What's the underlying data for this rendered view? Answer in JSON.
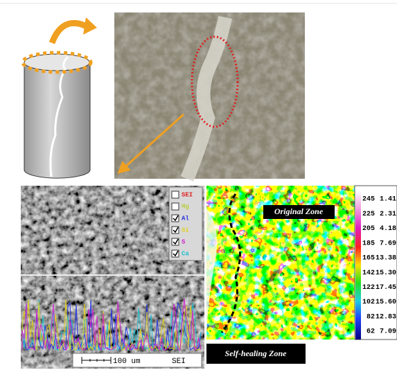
{
  "figure": {
    "legend": {
      "items": [
        {
          "label": "SEI",
          "checked": false,
          "color": "#e02020"
        },
        {
          "label": "Mg",
          "checked": false,
          "color": "#b8d040"
        },
        {
          "label": "Al",
          "checked": true,
          "color": "#2030e0"
        },
        {
          "label": "Si",
          "checked": true,
          "color": "#e0d020"
        },
        {
          "label": "S",
          "checked": true,
          "color": "#d020d0"
        },
        {
          "label": "Ca",
          "checked": true,
          "color": "#20c0d0"
        }
      ]
    },
    "scale_bar": {
      "label": "100 um",
      "detector": "SEI"
    },
    "zones": {
      "original": "Original Zone",
      "self_healing": "Self-healing Zone"
    },
    "color_scale": {
      "rows": [
        [
          "245",
          "1.41"
        ],
        [
          "225",
          "2.31"
        ],
        [
          "205",
          "4.18"
        ],
        [
          "185",
          "7.69"
        ],
        [
          "165",
          "13.38"
        ],
        [
          "142",
          "15.30"
        ],
        [
          "122",
          "17.45"
        ],
        [
          "102",
          "15.60"
        ],
        [
          "82",
          "12.83"
        ],
        [
          "62",
          "7.09"
        ]
      ]
    }
  }
}
